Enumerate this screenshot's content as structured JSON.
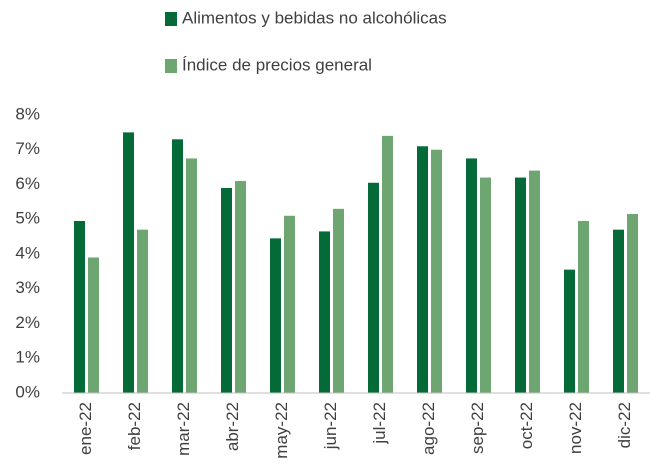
{
  "chart_data": {
    "type": "bar",
    "categories": [
      "ene-22",
      "feb-22",
      "mar-22",
      "abr-22",
      "may-22",
      "jun-22",
      "jul-22",
      "ago-22",
      "sep-22",
      "oct-22",
      "nov-22",
      "dic-22"
    ],
    "series": [
      {
        "name": "Alimentos y bebidas no alcohólicas",
        "color": "#046a38",
        "values": [
          4.95,
          7.5,
          7.3,
          5.9,
          4.45,
          4.65,
          6.05,
          7.1,
          6.75,
          6.2,
          3.55,
          4.7
        ]
      },
      {
        "name": "Índice de precios general",
        "color": "#6ea672",
        "values": [
          3.9,
          4.7,
          6.75,
          6.1,
          5.1,
          5.3,
          7.4,
          7.0,
          6.2,
          6.4,
          4.95,
          5.15
        ]
      }
    ],
    "ylim": [
      0,
      8
    ],
    "yticks": [
      {
        "value": 0,
        "label": "0%"
      },
      {
        "value": 1,
        "label": "1%"
      },
      {
        "value": 2,
        "label": "2%"
      },
      {
        "value": 3,
        "label": "3%"
      },
      {
        "value": 4,
        "label": "4%"
      },
      {
        "value": 5,
        "label": "5%"
      },
      {
        "value": 6,
        "label": "6%"
      },
      {
        "value": 7,
        "label": "7%"
      },
      {
        "value": 8,
        "label": "8%"
      }
    ],
    "grid": false,
    "legend": "top"
  }
}
